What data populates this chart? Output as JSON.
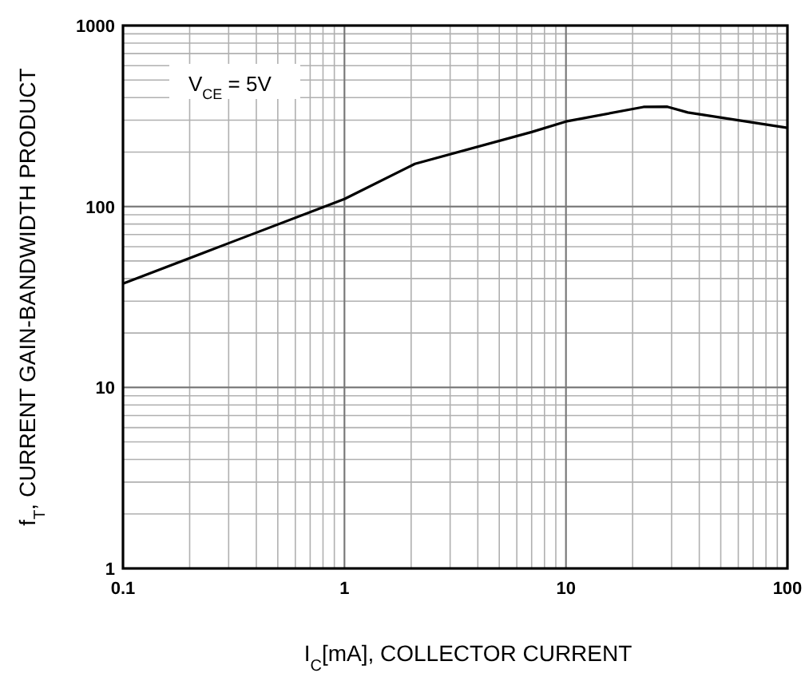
{
  "chart_data": {
    "type": "line",
    "xlabel": "I$_{C}$[mA], COLLECTOR CURRENT",
    "ylabel": "f$_{T}$, CURRENT GAIN-BANDWIDTH PRODUCT",
    "x": [
      0.1,
      0.3,
      1,
      2.08,
      7,
      10,
      22.4,
      28.7,
      35.5,
      100
    ],
    "series": [
      {
        "color": "#000000",
        "values": [
          37.5,
          62.7,
          110,
          172,
          258,
          295,
          355,
          356,
          331,
          272
        ]
      }
    ],
    "xlim": [
      0.1,
      100
    ],
    "ylim": [
      1,
      1000
    ],
    "xticks": [
      0.1,
      1,
      10,
      100
    ],
    "yticks": [
      1,
      10,
      100,
      1000
    ],
    "log": "xy",
    "grid": true,
    "marker": "none",
    "line_style": "solid",
    "annotations": [
      "V$_{CE}$ = 5V"
    ]
  }
}
